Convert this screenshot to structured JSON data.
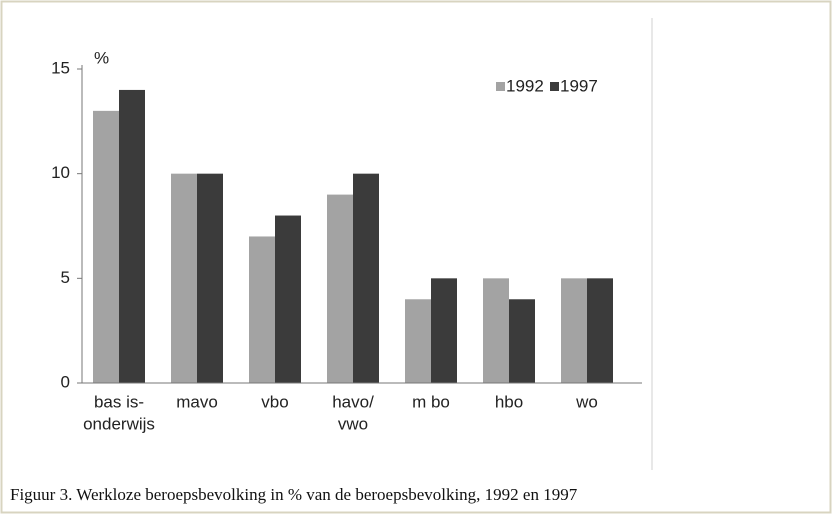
{
  "chart_data": {
    "type": "bar",
    "y_label": "%",
    "caption": "Figuur 3. Werkloze beroepsbevolking in % van de beroepsbevolking, 1992 en 1997",
    "categories": [
      [
        "bas is-",
        "onderwijs"
      ],
      [
        "mavo"
      ],
      [
        "vbo"
      ],
      [
        "havo/",
        "vwo"
      ],
      [
        "m bo"
      ],
      [
        "hbo"
      ],
      [
        "wo"
      ]
    ],
    "series": [
      {
        "name": "1992",
        "color": "#a3a3a3",
        "values": [
          13,
          10,
          7,
          9,
          4,
          5,
          5
        ]
      },
      {
        "name": "1997",
        "color": "#3b3b3b",
        "values": [
          14,
          10,
          8,
          10,
          5,
          4,
          5
        ]
      }
    ],
    "ylim": [
      0,
      15
    ],
    "yticks": [
      0,
      5,
      10,
      15
    ],
    "legend": "top-right"
  }
}
